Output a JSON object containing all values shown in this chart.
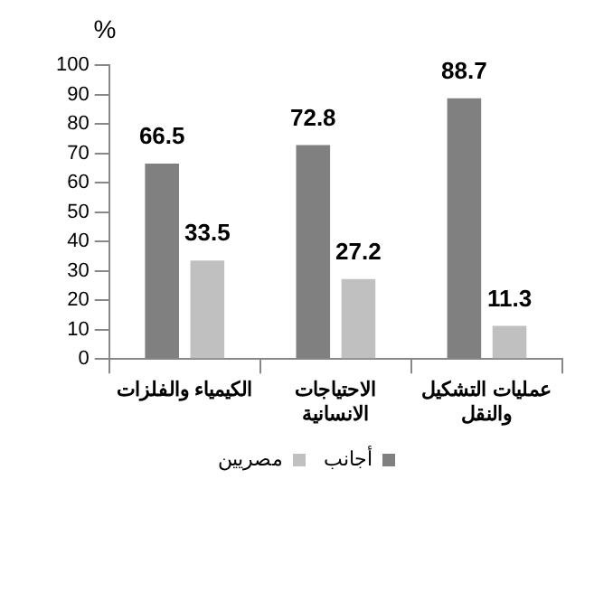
{
  "chart_data": {
    "type": "bar",
    "ylabel": "%",
    "categories": [
      "الكيمياء والفلزات",
      "الاحتياجات الانسانية",
      "عمليات التشكيل والنقل"
    ],
    "series": [
      {
        "name": "أجانب",
        "color": "#808080",
        "values": [
          66.5,
          72.8,
          88.7
        ]
      },
      {
        "name": "مصريين",
        "color": "#c0c0c0",
        "values": [
          33.5,
          27.2,
          11.3
        ]
      }
    ],
    "ylim": [
      0,
      100
    ],
    "yticks": [
      0,
      10,
      20,
      30,
      40,
      50,
      60,
      70,
      80,
      90,
      100
    ],
    "grid": false,
    "legend": "bottom",
    "data_labels": true
  }
}
